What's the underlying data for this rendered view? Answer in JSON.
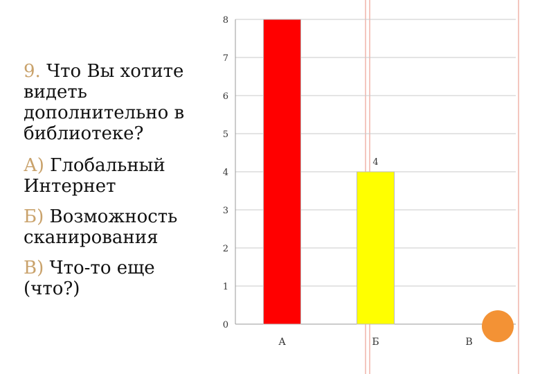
{
  "question": {
    "number": "9.",
    "text": "Что Вы хотите видеть дополнительно в библиотеке?"
  },
  "options": [
    {
      "letter": "А)",
      "text": "Глобальный Интернет"
    },
    {
      "letter": "Б)",
      "text": "Возможность сканирования"
    },
    {
      "letter": "В)",
      "text": "Что-то еще (что?)"
    }
  ],
  "colors": {
    "bar_a": "#ff0000",
    "bar_b": "#ffff00",
    "accent_text": "#c9a26b",
    "decor_lines": "#f4c6bf",
    "circle": "#f39235"
  },
  "chart_data": {
    "type": "bar",
    "categories": [
      "А",
      "Б",
      "В"
    ],
    "values": [
      8,
      4,
      0
    ],
    "colors": [
      "#ff0000",
      "#ffff00",
      "#ffffff"
    ],
    "data_labels": [
      null,
      "4",
      null
    ],
    "ylim": [
      0,
      8
    ],
    "yticks": [
      "0",
      "1",
      "2",
      "3",
      "4",
      "5",
      "6",
      "7",
      "8"
    ],
    "grid": true,
    "title": "",
    "xlabel": "",
    "ylabel": ""
  }
}
